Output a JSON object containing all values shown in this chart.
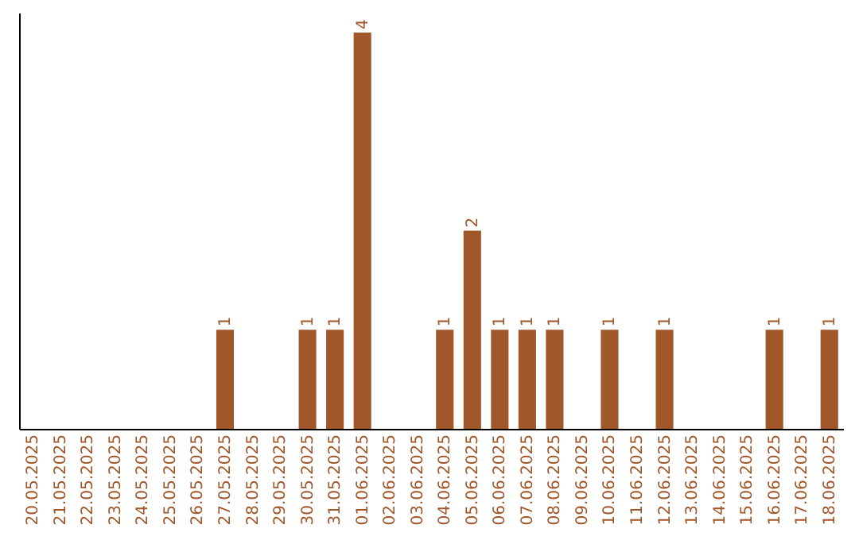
{
  "chart_data": {
    "type": "bar",
    "categories": [
      "20.05.2025",
      "21.05.2025",
      "22.05.2025",
      "23.05.2025",
      "24.05.2025",
      "25.05.2025",
      "26.05.2025",
      "27.05.2025",
      "28.05.2025",
      "29.05.2025",
      "30.05.2025",
      "31.05.2025",
      "01.06.2025",
      "02.06.2025",
      "03.06.2025",
      "04.06.2025",
      "05.06.2025",
      "06.06.2025",
      "07.06.2025",
      "08.06.2025",
      "09.06.2025",
      "10.06.2025",
      "11.06.2025",
      "12.06.2025",
      "13.06.2025",
      "14.06.2025",
      "15.06.2025",
      "16.06.2025",
      "17.06.2025",
      "18.06.2025"
    ],
    "values": [
      0,
      0,
      0,
      0,
      0,
      0,
      0,
      1,
      0,
      0,
      1,
      1,
      4,
      0,
      0,
      1,
      2,
      1,
      1,
      1,
      0,
      1,
      0,
      1,
      0,
      0,
      0,
      1,
      0,
      1
    ],
    "value_labels": [
      null,
      null,
      null,
      null,
      null,
      null,
      null,
      "1",
      null,
      null,
      "1",
      "1",
      "4",
      null,
      null,
      "1",
      "2",
      "1",
      "1",
      "1",
      null,
      "1",
      null,
      "1",
      null,
      null,
      null,
      "1",
      null,
      "1"
    ],
    "color": "#a0572a",
    "ylim": [
      0,
      4.2
    ],
    "tick_labels": "x",
    "grid": false
  }
}
